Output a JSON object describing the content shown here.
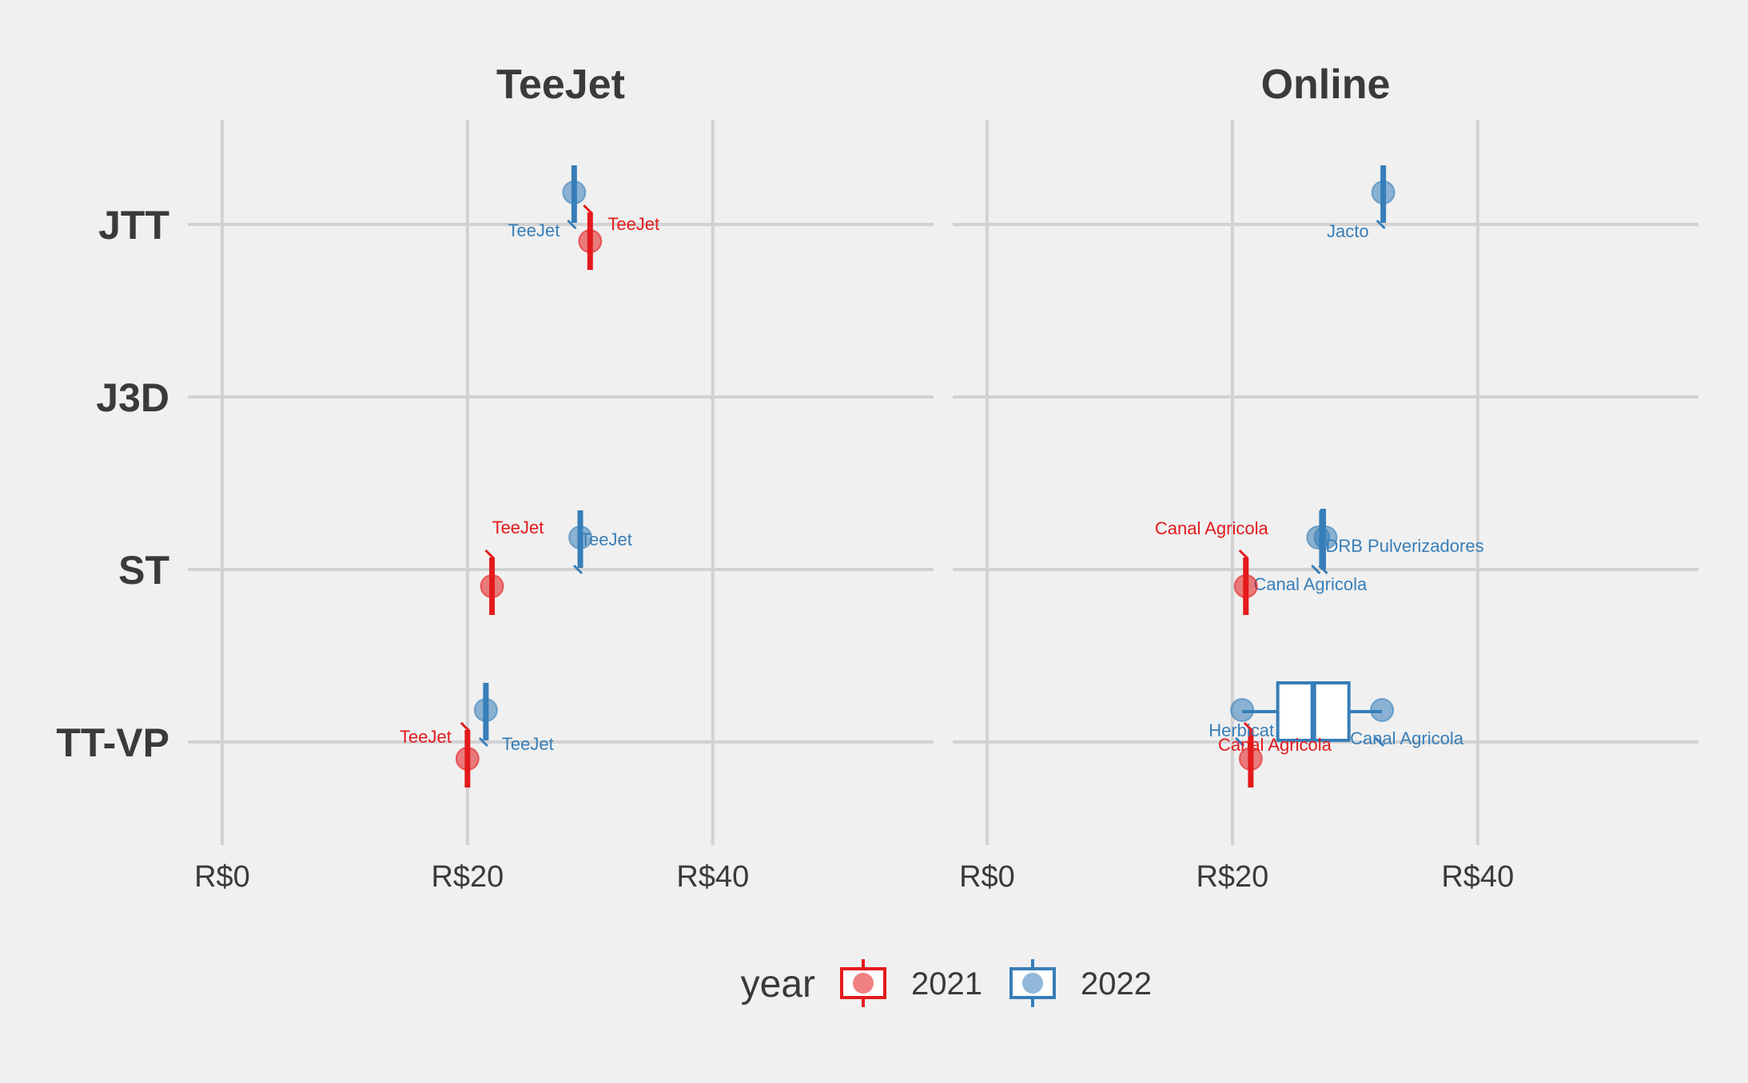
{
  "chart_data": {
    "type": "boxplot",
    "x_ticks": [
      "R$0",
      "R$20",
      "R$40"
    ],
    "x_tick_values": [
      0,
      20,
      40
    ],
    "xlim": [
      -2.8,
      58
    ],
    "categories": [
      "JTT",
      "J3D",
      "ST",
      "TT-VP"
    ],
    "legend": {
      "title": "year",
      "placement": "bottom",
      "entries": [
        {
          "label": "2021",
          "color": "#e41a1c"
        },
        {
          "label": "2022",
          "color": "#377eb8"
        }
      ]
    },
    "facets": [
      {
        "title": "TeeJet",
        "boxes": [
          {
            "category": "JTT",
            "year": "2022",
            "stat": [
              28.7,
              28.7,
              28.7,
              28.7,
              28.7
            ]
          },
          {
            "category": "JTT",
            "year": "2021",
            "stat": [
              30.0,
              30.0,
              30.0,
              30.0,
              30.0
            ]
          },
          {
            "category": "ST",
            "year": "2022",
            "stat": [
              29.2,
              29.2,
              29.2,
              29.2,
              29.2
            ]
          },
          {
            "category": "ST",
            "year": "2021",
            "stat": [
              22.0,
              22.0,
              22.0,
              22.0,
              22.0
            ]
          },
          {
            "category": "TT-VP",
            "year": "2022",
            "stat": [
              21.5,
              21.5,
              21.5,
              21.5,
              21.5
            ]
          },
          {
            "category": "TT-VP",
            "year": "2021",
            "stat": [
              20.0,
              20.0,
              20.0,
              20.0,
              20.0
            ]
          }
        ],
        "points": [
          {
            "category": "JTT",
            "year": "2022",
            "x": 28.7,
            "label": "TeeJet"
          },
          {
            "category": "JTT",
            "year": "2021",
            "x": 30.0,
            "label": "TeeJet"
          },
          {
            "category": "ST",
            "year": "2022",
            "x": 29.2,
            "label": "TeeJet"
          },
          {
            "category": "ST",
            "year": "2021",
            "x": 22.0,
            "label": "TeeJet"
          },
          {
            "category": "TT-VP",
            "year": "2022",
            "x": 21.5,
            "label": "TeeJet"
          },
          {
            "category": "TT-VP",
            "year": "2021",
            "x": 20.0,
            "label": "TeeJet"
          }
        ]
      },
      {
        "title": "Online",
        "boxes": [
          {
            "category": "JTT",
            "year": "2022",
            "stat": [
              32.3,
              32.3,
              32.3,
              32.3,
              32.3
            ]
          },
          {
            "category": "ST",
            "year": "2022",
            "stat": [
              27.0,
              27.3,
              27.3,
              27.5,
              27.6
            ]
          },
          {
            "category": "ST",
            "year": "2021",
            "stat": [
              21.1,
              21.1,
              21.1,
              21.1,
              21.1
            ]
          },
          {
            "category": "TT-VP",
            "year": "2022",
            "stat": [
              20.8,
              23.7,
              26.6,
              29.5,
              32.2
            ]
          },
          {
            "category": "TT-VP",
            "year": "2021",
            "stat": [
              21.5,
              21.5,
              21.5,
              21.5,
              21.5
            ]
          }
        ],
        "points": [
          {
            "category": "JTT",
            "year": "2022",
            "x": 32.3,
            "label": "Jacto"
          },
          {
            "category": "ST",
            "year": "2022",
            "x": 27.0,
            "label": "Canal Agricola"
          },
          {
            "category": "ST",
            "year": "2022",
            "x": 27.6,
            "label": "DRB Pulverizadores"
          },
          {
            "category": "ST",
            "year": "2021",
            "x": 21.1,
            "label": "Canal Agricola"
          },
          {
            "category": "TT-VP",
            "year": "2022",
            "x": 20.8,
            "label": "Herbicat"
          },
          {
            "category": "TT-VP",
            "year": "2022",
            "x": 32.2,
            "label": "Canal Agricola"
          },
          {
            "category": "TT-VP",
            "year": "2021",
            "x": 21.5,
            "label": "Canal Agricola"
          }
        ]
      }
    ]
  }
}
